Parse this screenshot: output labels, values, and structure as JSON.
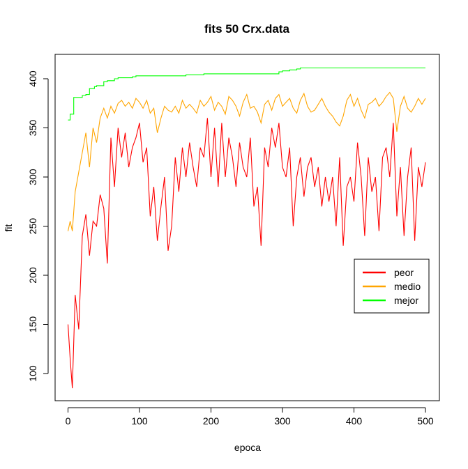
{
  "chart_data": {
    "type": "line",
    "title": "fits 50 Crx.data",
    "xlabel": "epoca",
    "ylabel": "fit",
    "xlim": [
      0,
      500
    ],
    "ylim": [
      85,
      415
    ],
    "xticks": [
      0,
      100,
      200,
      300,
      400,
      500
    ],
    "yticks": [
      100,
      150,
      200,
      250,
      300,
      350,
      400
    ],
    "grid": false,
    "legend_position": "right",
    "series": [
      {
        "name": "peor",
        "color": "#ff0000",
        "x": [
          0,
          3,
          6,
          10,
          15,
          20,
          25,
          30,
          35,
          40,
          45,
          50,
          55,
          60,
          65,
          70,
          75,
          80,
          85,
          90,
          95,
          100,
          105,
          110,
          115,
          120,
          125,
          130,
          135,
          140,
          145,
          150,
          155,
          160,
          165,
          170,
          175,
          180,
          185,
          190,
          195,
          200,
          205,
          210,
          215,
          220,
          225,
          230,
          235,
          240,
          245,
          250,
          255,
          260,
          265,
          270,
          275,
          280,
          285,
          290,
          295,
          300,
          305,
          310,
          315,
          320,
          325,
          330,
          335,
          340,
          345,
          350,
          355,
          360,
          365,
          370,
          375,
          380,
          385,
          390,
          395,
          400,
          405,
          410,
          415,
          420,
          425,
          430,
          435,
          440,
          445,
          450,
          455,
          460,
          465,
          470,
          475,
          480,
          485,
          490,
          495,
          500
        ],
        "values": [
          150,
          115,
          85,
          180,
          145,
          240,
          262,
          220,
          255,
          250,
          282,
          268,
          212,
          340,
          290,
          350,
          320,
          345,
          310,
          330,
          340,
          355,
          315,
          330,
          260,
          290,
          235,
          270,
          300,
          225,
          250,
          320,
          285,
          330,
          300,
          335,
          310,
          290,
          330,
          320,
          360,
          300,
          350,
          290,
          355,
          300,
          340,
          320,
          290,
          335,
          310,
          300,
          340,
          270,
          290,
          230,
          330,
          310,
          350,
          330,
          355,
          310,
          300,
          330,
          250,
          300,
          320,
          280,
          310,
          320,
          290,
          310,
          270,
          300,
          275,
          300,
          250,
          320,
          230,
          290,
          300,
          275,
          335,
          300,
          240,
          320,
          285,
          300,
          245,
          320,
          330,
          300,
          355,
          260,
          310,
          240,
          300,
          330,
          235,
          310,
          290,
          315
        ]
      },
      {
        "name": "medio",
        "color": "#ffa500",
        "x": [
          0,
          3,
          6,
          10,
          15,
          20,
          25,
          30,
          35,
          40,
          45,
          50,
          55,
          60,
          65,
          70,
          75,
          80,
          85,
          90,
          95,
          100,
          105,
          110,
          115,
          120,
          125,
          130,
          135,
          140,
          145,
          150,
          155,
          160,
          165,
          170,
          175,
          180,
          185,
          190,
          195,
          200,
          205,
          210,
          215,
          220,
          225,
          230,
          235,
          240,
          245,
          250,
          255,
          260,
          265,
          270,
          275,
          280,
          285,
          290,
          295,
          300,
          305,
          310,
          315,
          320,
          325,
          330,
          335,
          340,
          345,
          350,
          355,
          360,
          365,
          370,
          375,
          380,
          385,
          390,
          395,
          400,
          405,
          410,
          415,
          420,
          425,
          430,
          435,
          440,
          445,
          450,
          455,
          460,
          465,
          470,
          475,
          480,
          485,
          490,
          495,
          500
        ],
        "values": [
          245,
          255,
          245,
          285,
          305,
          325,
          345,
          310,
          350,
          335,
          360,
          370,
          360,
          372,
          365,
          375,
          378,
          372,
          376,
          370,
          380,
          376,
          370,
          378,
          365,
          370,
          345,
          360,
          372,
          368,
          366,
          372,
          365,
          378,
          370,
          374,
          370,
          365,
          378,
          372,
          376,
          382,
          368,
          376,
          372,
          364,
          382,
          378,
          372,
          362,
          376,
          384,
          370,
          372,
          366,
          355,
          374,
          378,
          368,
          380,
          384,
          372,
          376,
          380,
          370,
          365,
          378,
          385,
          372,
          366,
          368,
          374,
          380,
          372,
          366,
          362,
          356,
          352,
          362,
          378,
          384,
          372,
          380,
          368,
          360,
          374,
          376,
          380,
          372,
          376,
          382,
          386,
          380,
          346,
          372,
          382,
          370,
          366,
          372,
          380,
          374,
          380
        ]
      },
      {
        "name": "mejor",
        "color": "#00ff00",
        "x": [
          0,
          3,
          8,
          20,
          25,
          30,
          37,
          40,
          50,
          55,
          65,
          70,
          90,
          95,
          160,
          165,
          190,
          290,
          295,
          300,
          310,
          320,
          325,
          500
        ],
        "values": [
          358,
          364,
          381,
          383,
          384,
          390,
          392,
          393,
          397,
          398,
          400,
          401,
          402,
          403,
          403,
          404,
          405,
          405,
          407,
          408,
          409,
          410,
          411,
          411
        ]
      }
    ],
    "legend": [
      "peor",
      "medio",
      "mejor"
    ]
  }
}
